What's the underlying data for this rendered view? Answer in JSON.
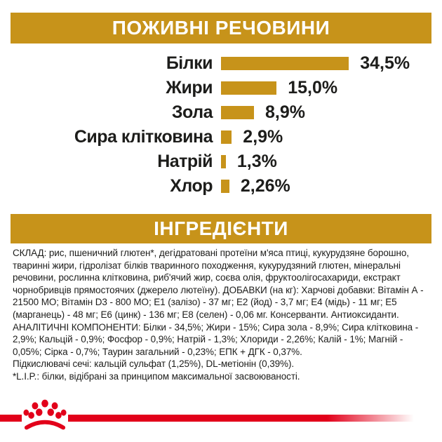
{
  "title_banner": {
    "label": "ПОЖИВНІ РЕЧОВИНИ"
  },
  "ingredients_banner": {
    "label": "ІНГРЕДІЄНТИ"
  },
  "chart_data": {
    "type": "bar",
    "orientation": "horizontal",
    "title": "ПОЖИВНІ РЕЧОВИНИ",
    "categories": [
      "Білки",
      "Жири",
      "Зола",
      "Сира клітковина",
      "Натрій",
      "Хлор"
    ],
    "values": [
      34.5,
      15.0,
      8.9,
      2.9,
      1.3,
      2.26
    ],
    "value_labels": [
      "34,5%",
      "15,0%",
      "8,9%",
      "2,9%",
      "1,3%",
      "2,26%"
    ],
    "bar_color": "#c7931a",
    "xlim": [
      0,
      40
    ],
    "grid": false,
    "legend": false
  },
  "ingredients_text": {
    "composition": "СКЛАД: рис, пшеничний глютен*, дегідратовані протеїни м'яса птиці, кукурудзяне борошно, тваринні жири, гідролізат білків тваринного походження, кукурудзяний глютен, мінеральні речовини, рослинна клітковина, риб'ячий жир, соєва олія, фруктоолігосахариди, екстракт чорнобривців прямостоячих (джерело лютеїну). ДОБАВКИ (на кг): Харчові добавки: Вітамін А - 21500 МО; Вітамін D3 - 800 МО; Е1 (залізо) - 37 мг; Е2 (йод) - 3,7 мг; Е4 (мідь) - 11 мг; Е5 (марганець) - 48 мг; Е6 (цинк) - 136 мг; Е8 (селен) - 0,06 мг. Консерванти. Антиоксиданти.",
    "analytical": "АНАЛІТИЧНІ КОМПОНЕНТИ: Білки - 34,5%; Жири - 15%; Сира зола - 8,9%; Сира клітковина - 2,9%; Кальцій - 0,9%; Фосфор - 0,9%; Натрій - 1,3%; Хлориди - 2,26%; Калій - 1%; Магній - 0,05%; Сірка - 0,7%; Таурин загальний - 0,23%; ЕПК + ДГК - 0,37%.",
    "urine_acidifiers": "Підкислювачі сечі: кальцій сульфат (1,25%), DL-метіонін (0,39%).",
    "lip_note": "*L.I.P.: білки, відібрані за принципом максимальної засвоюваності."
  },
  "colors": {
    "gold": "#c7931a",
    "red": "#e2001a",
    "text": "#1d1d1b",
    "banner_text": "#ffffff"
  }
}
